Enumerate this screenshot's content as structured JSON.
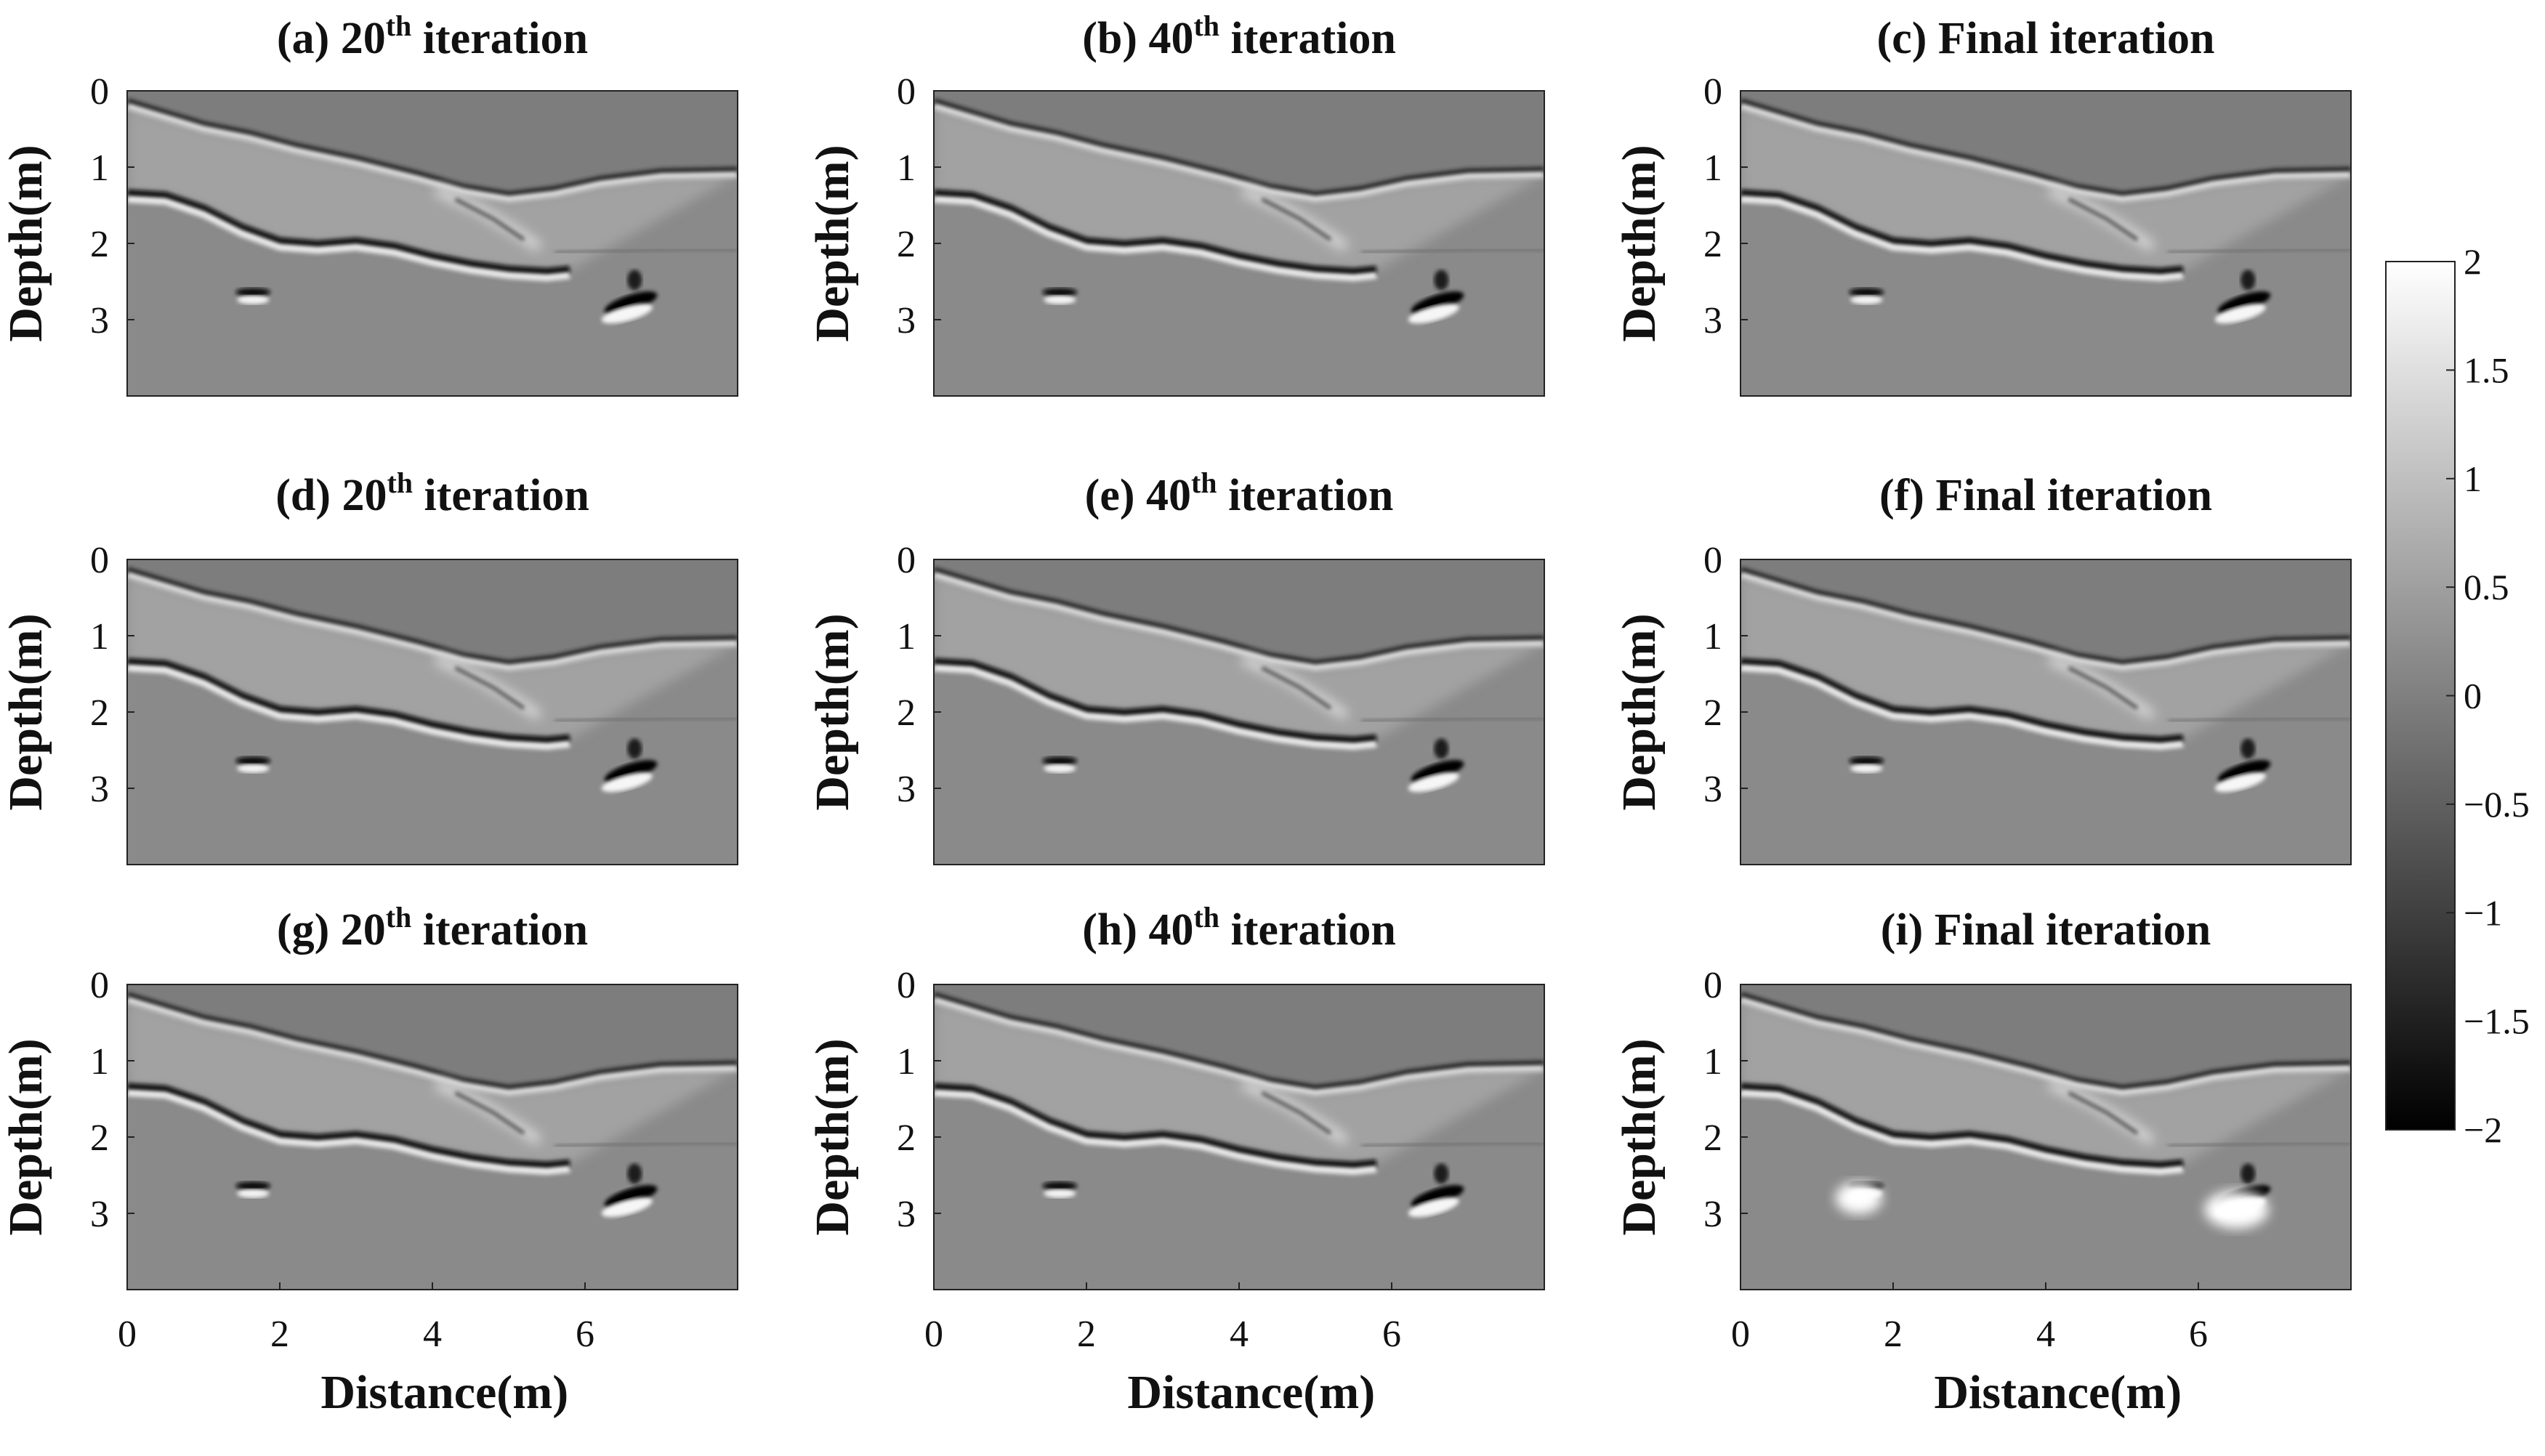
{
  "chart_data": {
    "type": "heatmap",
    "colormap": "gray",
    "colorbar": {
      "min": -2,
      "max": 2,
      "ticks": [
        "2",
        "1.5",
        "1",
        "0.5",
        "0",
        "−0.5",
        "−1",
        "−1.5",
        "−2"
      ]
    },
    "xlabel": "Distance(m)",
    "ylabel": "Depth(m)",
    "xlim": [
      0,
      8
    ],
    "ylim": [
      0,
      4
    ],
    "xticks": [
      "0",
      "2",
      "4",
      "6"
    ],
    "yticks": [
      "0",
      "1",
      "2",
      "3"
    ],
    "panels": [
      {
        "label": "(a) 20",
        "sup": "th",
        "suffix": " iteration"
      },
      {
        "label": "(b) 40",
        "sup": "th",
        "suffix": " iteration"
      },
      {
        "label": "(c) Final iteration",
        "sup": "",
        "suffix": ""
      },
      {
        "label": "(d) 20",
        "sup": "th",
        "suffix": " iteration"
      },
      {
        "label": "(e) 40",
        "sup": "th",
        "suffix": " iteration"
      },
      {
        "label": "(f) Final iteration",
        "sup": "",
        "suffix": ""
      },
      {
        "label": "(g) 20",
        "sup": "th",
        "suffix": " iteration"
      },
      {
        "label": "(h) 40",
        "sup": "th",
        "suffix": " iteration"
      },
      {
        "label": "(i) Final iteration",
        "sup": "",
        "suffix": ""
      }
    ]
  }
}
